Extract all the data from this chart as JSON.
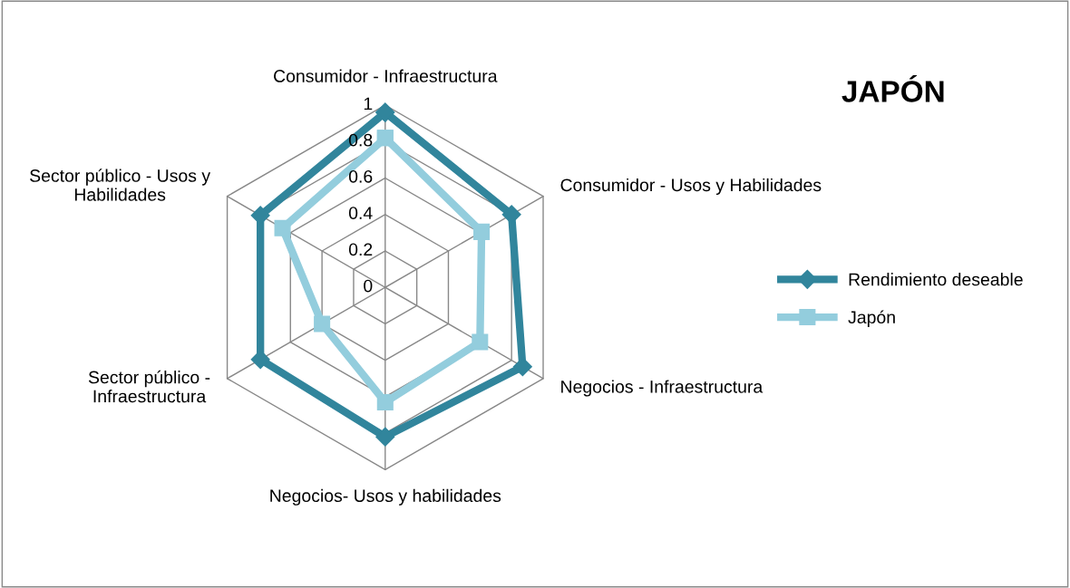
{
  "chart_data": {
    "type": "radar",
    "title": "JAPÓN",
    "categories": [
      "Consumidor - Infraestructura",
      "Consumidor - Usos y Habilidades",
      "Negocios - Infraestructura",
      "Negocios- Usos y habilidades",
      "Sector público - Infraestructura",
      "Sector público - Usos y Habilidades"
    ],
    "series": [
      {
        "name": "Rendimiento deseable",
        "color": "#31859c",
        "marker": "diamond",
        "values": [
          0.96,
          0.8,
          0.87,
          0.82,
          0.79,
          0.79
        ]
      },
      {
        "name": "Japón",
        "color": "#93cddd",
        "marker": "square",
        "values": [
          0.82,
          0.61,
          0.6,
          0.63,
          0.4,
          0.65
        ]
      }
    ],
    "ylim": [
      0,
      1
    ],
    "yticks": [
      0,
      0.2,
      0.4,
      0.6,
      0.8,
      1
    ],
    "grid": true,
    "legend": "right"
  }
}
